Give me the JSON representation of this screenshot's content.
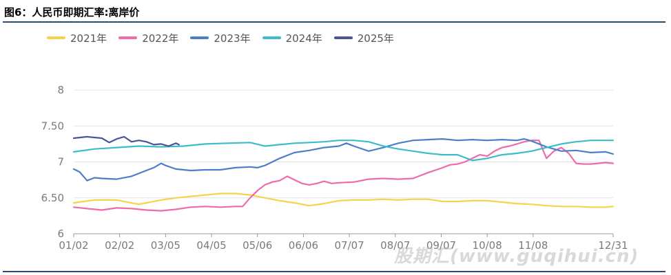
{
  "header": {
    "title": "图6：人民币即期汇率:离岸价"
  },
  "watermark": "股期汇(www.guqihui.cn)",
  "chart_data": {
    "type": "line",
    "title": "图6：人民币即期汇率:离岸价",
    "xlabel": "",
    "ylabel": "",
    "ylim": [
      6,
      8
    ],
    "y_ticks": [
      "6",
      "6.50",
      "7",
      "7.50",
      "8"
    ],
    "y_tick_values": [
      6,
      6.5,
      7,
      7.5,
      8
    ],
    "x_ticks": [
      "01/02",
      "02/02",
      "03/05",
      "04/05",
      "05/06",
      "06/06",
      "07/07",
      "08/07",
      "09/07",
      "10/08",
      "11/08",
      "12/31"
    ],
    "x_tick_days": [
      1,
      32,
      63,
      94,
      125,
      156,
      187,
      218,
      249,
      280,
      311,
      365
    ],
    "x_range_days": [
      1,
      365
    ],
    "grid": true,
    "legend": "top",
    "series": [
      {
        "name": "2021年",
        "color": "#f5d34a",
        "x": [
          1,
          15,
          30,
          45,
          60,
          70,
          80,
          90,
          100,
          110,
          120,
          130,
          140,
          150,
          160,
          170,
          180,
          190,
          200,
          210,
          220,
          230,
          240,
          250,
          260,
          270,
          280,
          290,
          300,
          310,
          320,
          330,
          340,
          350,
          360,
          365
        ],
        "y": [
          6.43,
          6.47,
          6.47,
          6.41,
          6.47,
          6.5,
          6.52,
          6.54,
          6.56,
          6.56,
          6.54,
          6.5,
          6.46,
          6.43,
          6.39,
          6.42,
          6.46,
          6.47,
          6.47,
          6.48,
          6.47,
          6.48,
          6.48,
          6.45,
          6.45,
          6.46,
          6.46,
          6.44,
          6.42,
          6.41,
          6.39,
          6.38,
          6.38,
          6.37,
          6.37,
          6.38
        ]
      },
      {
        "name": "2022年",
        "color": "#f06aa8",
        "x": [
          1,
          10,
          20,
          30,
          40,
          50,
          60,
          70,
          80,
          90,
          100,
          110,
          115,
          120,
          125,
          130,
          135,
          140,
          145,
          150,
          155,
          160,
          165,
          170,
          175,
          180,
          190,
          200,
          210,
          220,
          230,
          240,
          250,
          255,
          260,
          265,
          270,
          275,
          280,
          285,
          290,
          295,
          300,
          305,
          310,
          315,
          320,
          325,
          330,
          335,
          340,
          345,
          350,
          355,
          360,
          365
        ],
        "y": [
          6.37,
          6.35,
          6.33,
          6.36,
          6.35,
          6.33,
          6.32,
          6.34,
          6.37,
          6.38,
          6.37,
          6.38,
          6.38,
          6.5,
          6.6,
          6.68,
          6.72,
          6.74,
          6.8,
          6.75,
          6.7,
          6.68,
          6.7,
          6.73,
          6.7,
          6.71,
          6.72,
          6.76,
          6.77,
          6.76,
          6.77,
          6.85,
          6.92,
          6.96,
          6.97,
          7.0,
          7.05,
          7.1,
          7.08,
          7.15,
          7.2,
          7.22,
          7.25,
          7.28,
          7.3,
          7.3,
          7.05,
          7.15,
          7.2,
          7.12,
          6.98,
          6.97,
          6.97,
          6.98,
          6.99,
          6.98
        ]
      },
      {
        "name": "2023年",
        "color": "#4a7ec9",
        "x": [
          1,
          5,
          10,
          15,
          20,
          30,
          40,
          50,
          55,
          60,
          63,
          70,
          80,
          90,
          100,
          110,
          120,
          125,
          130,
          140,
          150,
          160,
          170,
          180,
          185,
          190,
          200,
          210,
          220,
          230,
          240,
          250,
          260,
          270,
          280,
          290,
          300,
          305,
          310,
          320,
          330,
          340,
          350,
          360,
          365
        ],
        "y": [
          6.9,
          6.86,
          6.74,
          6.78,
          6.77,
          6.76,
          6.8,
          6.88,
          6.92,
          6.98,
          6.95,
          6.9,
          6.88,
          6.89,
          6.89,
          6.92,
          6.93,
          6.92,
          6.95,
          7.05,
          7.13,
          7.16,
          7.2,
          7.22,
          7.26,
          7.22,
          7.15,
          7.2,
          7.26,
          7.3,
          7.31,
          7.32,
          7.3,
          7.31,
          7.3,
          7.31,
          7.3,
          7.32,
          7.29,
          7.21,
          7.15,
          7.16,
          7.13,
          7.14,
          7.11
        ]
      },
      {
        "name": "2024年",
        "color": "#3bbcc8",
        "x": [
          1,
          15,
          30,
          45,
          60,
          75,
          90,
          105,
          120,
          130,
          140,
          150,
          160,
          170,
          180,
          190,
          200,
          210,
          220,
          230,
          240,
          250,
          260,
          270,
          280,
          290,
          300,
          310,
          320,
          330,
          340,
          350,
          360,
          365
        ],
        "y": [
          7.14,
          7.18,
          7.2,
          7.22,
          7.21,
          7.22,
          7.25,
          7.26,
          7.27,
          7.22,
          7.24,
          7.26,
          7.27,
          7.28,
          7.3,
          7.3,
          7.28,
          7.22,
          7.18,
          7.15,
          7.12,
          7.1,
          7.1,
          7.02,
          7.05,
          7.1,
          7.12,
          7.15,
          7.2,
          7.25,
          7.28,
          7.3,
          7.3,
          7.3
        ]
      },
      {
        "name": "2025年",
        "color": "#4b5499",
        "x": [
          1,
          10,
          15,
          20,
          25,
          30,
          35,
          40,
          45,
          50,
          55,
          60,
          65,
          70,
          72
        ],
        "y": [
          7.33,
          7.35,
          7.34,
          7.33,
          7.27,
          7.32,
          7.35,
          7.28,
          7.3,
          7.28,
          7.24,
          7.25,
          7.22,
          7.26,
          7.24
        ]
      }
    ]
  }
}
